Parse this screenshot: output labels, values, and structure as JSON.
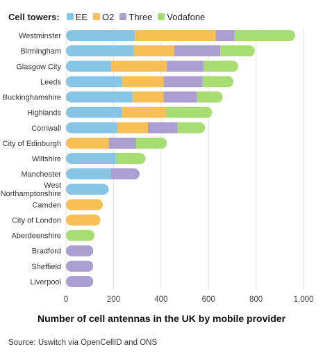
{
  "chart_data": {
    "type": "bar",
    "orientation": "horizontal",
    "stacked": true,
    "legend_title": "Cell towers:",
    "legend_position": "top-left",
    "categories": [
      "Westminster",
      "Birmingham",
      "Glasgow City",
      "Leeds",
      "Buckinghamshire",
      "Highlands",
      "Cornwall",
      "City of Edinburgh",
      "Wiltshire",
      "Manchester",
      "West Northamptonshire",
      "Camden",
      "City of London",
      "Aberdeenshire",
      "Bradford",
      "Sheffield",
      "Liverpool"
    ],
    "series": [
      {
        "name": "EE",
        "color": "#87c5e6",
        "values": [
          290,
          285,
          190,
          235,
          280,
          235,
          215,
          0,
          210,
          190,
          180,
          0,
          0,
          0,
          0,
          0,
          0
        ]
      },
      {
        "name": "O2",
        "color": "#f7bf54",
        "values": [
          340,
          170,
          235,
          175,
          130,
          185,
          130,
          180,
          0,
          0,
          0,
          155,
          145,
          0,
          0,
          0,
          0
        ]
      },
      {
        "name": "Three",
        "color": "#ab9ed1",
        "values": [
          80,
          195,
          155,
          165,
          140,
          0,
          125,
          115,
          0,
          120,
          0,
          0,
          0,
          0,
          115,
          115,
          115
        ]
      },
      {
        "name": "Vodafone",
        "color": "#a6de73",
        "values": [
          255,
          145,
          145,
          130,
          110,
          195,
          115,
          130,
          125,
          0,
          0,
          0,
          0,
          120,
          0,
          0,
          0
        ]
      }
    ],
    "xlim": [
      0,
      1000
    ],
    "xticks": [
      "0",
      "200",
      "400",
      "600",
      "800",
      "1,000"
    ],
    "xlabel": "Number of cell antennas in the UK by mobile provider",
    "grid": "vertical"
  },
  "source": "Source: Uswitch via OpenCellID and ONS"
}
